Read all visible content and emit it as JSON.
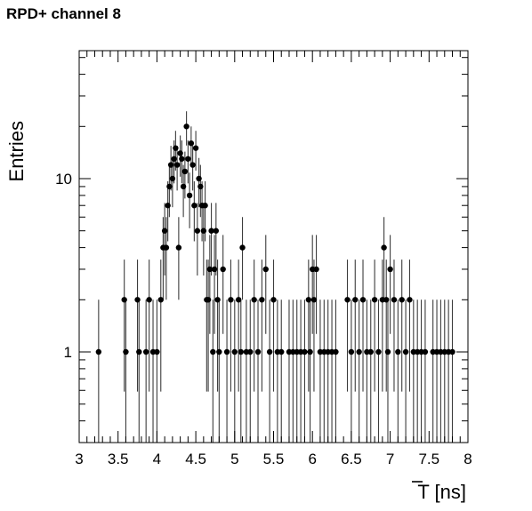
{
  "chart_data": {
    "type": "scatter",
    "title": "RPD+ channel 8",
    "xlabel": "T [ns]",
    "xlabel_overline": true,
    "ylabel": "Entries",
    "xlim": [
      3,
      8
    ],
    "ylim": [
      0.3,
      50
    ],
    "yscale": "log",
    "grid": false,
    "marker_color": "#000000",
    "errorbar_color": "#3c3c3c",
    "x_ticks": [
      {
        "value": 3,
        "label": "3"
      },
      {
        "value": 3.5,
        "label": "3.5"
      },
      {
        "value": 4,
        "label": "4"
      },
      {
        "value": 4.5,
        "label": "4.5"
      },
      {
        "value": 5,
        "label": "5"
      },
      {
        "value": 5.5,
        "label": "5.5"
      },
      {
        "value": 6,
        "label": "6"
      },
      {
        "value": 6.5,
        "label": "6.5"
      },
      {
        "value": 7,
        "label": "7"
      },
      {
        "value": 7.5,
        "label": "7.5"
      },
      {
        "value": 8,
        "label": "8"
      }
    ],
    "y_ticks": [
      {
        "value": 1,
        "label": "1"
      },
      {
        "value": 10,
        "label": "10"
      }
    ],
    "x": [
      3.25,
      3.58,
      3.6,
      3.75,
      3.77,
      3.86,
      3.9,
      3.95,
      4.0,
      4.05,
      4.08,
      4.1,
      4.12,
      4.14,
      4.16,
      4.18,
      4.2,
      4.22,
      4.24,
      4.26,
      4.28,
      4.3,
      4.32,
      4.34,
      4.36,
      4.38,
      4.4,
      4.42,
      4.44,
      4.46,
      4.48,
      4.5,
      4.52,
      4.54,
      4.56,
      4.58,
      4.6,
      4.62,
      4.64,
      4.66,
      4.68,
      4.7,
      4.72,
      4.74,
      4.76,
      4.78,
      4.8,
      4.85,
      4.9,
      4.95,
      5.0,
      5.05,
      5.08,
      5.1,
      5.15,
      5.2,
      5.25,
      5.3,
      5.35,
      5.4,
      5.45,
      5.5,
      5.55,
      5.6,
      5.7,
      5.75,
      5.8,
      5.85,
      5.9,
      5.95,
      5.97,
      6.0,
      6.02,
      6.05,
      6.1,
      6.15,
      6.2,
      6.25,
      6.3,
      6.45,
      6.5,
      6.55,
      6.6,
      6.65,
      6.7,
      6.75,
      6.8,
      6.85,
      6.9,
      6.92,
      6.95,
      6.97,
      7.0,
      7.05,
      7.1,
      7.15,
      7.2,
      7.25,
      7.3,
      7.35,
      7.4,
      7.45,
      7.55,
      7.6,
      7.65,
      7.7,
      7.75,
      7.8
    ],
    "y": [
      1,
      2,
      1,
      2,
      1,
      1,
      2,
      1,
      1,
      2,
      4,
      5,
      4,
      7,
      9,
      12,
      10,
      13,
      15,
      12,
      4,
      14,
      13,
      9,
      11,
      20,
      13,
      8,
      16,
      12,
      7,
      15,
      5,
      10,
      9,
      7,
      5,
      7,
      2,
      2,
      3,
      5,
      1,
      3,
      5,
      2,
      1,
      3,
      1,
      2,
      1,
      2,
      1,
      4,
      1,
      1,
      2,
      1,
      2,
      3,
      1,
      2,
      1,
      1,
      1,
      1,
      1,
      1,
      1,
      2,
      1,
      3,
      2,
      3,
      1,
      1,
      1,
      1,
      1,
      2,
      1,
      2,
      1,
      2,
      1,
      1,
      2,
      1,
      2,
      4,
      2,
      1,
      3,
      2,
      1,
      2,
      1,
      2,
      1,
      1,
      1,
      1,
      1,
      1,
      1,
      1,
      1,
      1
    ],
    "y_err_low": [
      1,
      1.41,
      1,
      1.41,
      1,
      1,
      1.41,
      1,
      1,
      1.41,
      2,
      2.24,
      2,
      2.65,
      3,
      3.46,
      3.16,
      3.61,
      3.87,
      3.46,
      2,
      3.74,
      3.61,
      3,
      3.32,
      4.47,
      3.61,
      2.83,
      4,
      3.46,
      2.65,
      3.87,
      2.24,
      3.16,
      3,
      2.65,
      2.24,
      2.65,
      1.41,
      1.41,
      1.73,
      2.24,
      1,
      1.73,
      2.24,
      1.41,
      1,
      1.73,
      1,
      1.41,
      1,
      1.41,
      1,
      2,
      1,
      1,
      1.41,
      1,
      1.41,
      1.73,
      1,
      1.41,
      1,
      1,
      1,
      1,
      1,
      1,
      1,
      1.41,
      1,
      1.73,
      1.41,
      1.73,
      1,
      1,
      1,
      1,
      1,
      1.41,
      1,
      1.41,
      1,
      1.41,
      1,
      1,
      1.41,
      1,
      1.41,
      2,
      1.41,
      1,
      1.73,
      1.41,
      1,
      1.41,
      1,
      1.41,
      1,
      1,
      1,
      1,
      1,
      1,
      1,
      1,
      1,
      1
    ]
  }
}
